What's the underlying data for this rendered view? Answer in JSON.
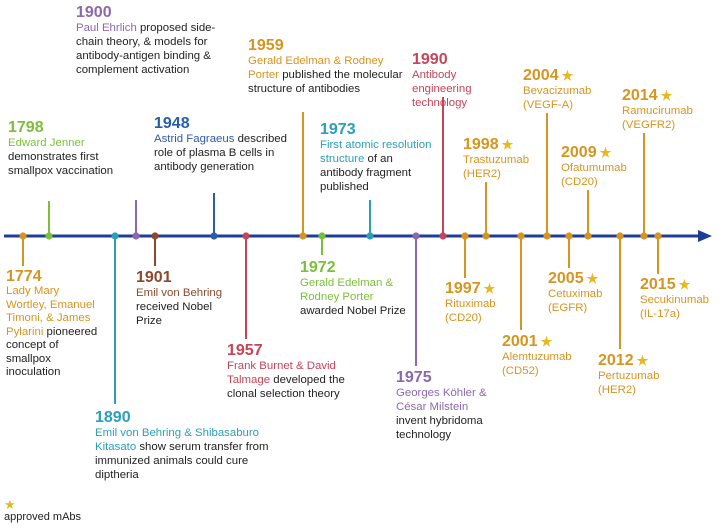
{
  "colors": {
    "axis": "#1f3c96",
    "green": "#7cbf3a",
    "orange": "#d6951f",
    "purple": "#8d68ad",
    "blue": "#2a5da8",
    "teal": "#2aa0b8",
    "brown": "#8a4a2c",
    "red": "#c44558",
    "star": "#e8b820"
  },
  "events": [
    {
      "id": "e1774",
      "year": "1774",
      "who": "Lady Mary Wortley, Emanuel Timoni, & James Pylarini",
      "rest": "pioneered concept of smallpox inoculation",
      "color": "orange",
      "approved": false
    },
    {
      "id": "e1798",
      "year": "1798",
      "who": "Edward Jenner",
      "rest": "demonstrates first smallpox vaccination",
      "color": "green",
      "approved": false
    },
    {
      "id": "e1890",
      "year": "1890",
      "who": "Emil von Behring & Shibasaburo Kitasato",
      "rest": "show serum transfer from immunized animals could cure diptheria",
      "color": "teal",
      "approved": false
    },
    {
      "id": "e1900",
      "year": "1900",
      "who": "Paul Ehrlich",
      "rest": "proposed side-chain theory, & models for antibody-antigen binding & complement activation",
      "color": "purple",
      "approved": false
    },
    {
      "id": "e1901",
      "year": "1901",
      "who": "Emil von Behring",
      "rest": "received Nobel Prize",
      "color": "brown",
      "approved": false
    },
    {
      "id": "e1948",
      "year": "1948",
      "who": "Astrid Fagraeus",
      "rest": "described role of plasma B cells in antibody generation",
      "color": "blue",
      "approved": false
    },
    {
      "id": "e1957",
      "year": "1957",
      "who": "Frank Burnet & David Talmage",
      "rest": "developed the clonal selection theory",
      "color": "red",
      "approved": false
    },
    {
      "id": "e1959",
      "year": "1959",
      "who": "Gerald Edelman & Rodney Porter",
      "rest": "published the molecular structure of antibodies",
      "color": "orange",
      "approved": false
    },
    {
      "id": "e1972",
      "year": "1972",
      "who": "Gerald Edelman & Rodney Porter",
      "rest": "awarded Nobel Prize",
      "color": "green",
      "approved": false
    },
    {
      "id": "e1973",
      "year": "1973",
      "who": "First atomic resolution structure",
      "rest": "of an antibody fragment published",
      "color": "teal",
      "approved": false
    },
    {
      "id": "e1975",
      "year": "1975",
      "who": "Georges Köhler & César Milstein",
      "rest": "invent hybridoma technology",
      "color": "purple",
      "approved": false
    },
    {
      "id": "e1990",
      "year": "1990",
      "who": "Antibody engineering technology",
      "rest": "",
      "color": "red",
      "approved": false
    },
    {
      "id": "e1997",
      "year": "1997",
      "who": "Rituximab (CD20)",
      "rest": "",
      "color": "orange",
      "approved": true
    },
    {
      "id": "e1998",
      "year": "1998",
      "who": "Trastuzumab (HER2)",
      "rest": "",
      "color": "orange",
      "approved": true
    },
    {
      "id": "e2001",
      "year": "2001",
      "who": "Alemtuzumab (CD52)",
      "rest": "",
      "color": "orange",
      "approved": true
    },
    {
      "id": "e2004",
      "year": "2004",
      "who": "Bevacizumab (VEGF-A)",
      "rest": "",
      "color": "orange",
      "approved": true
    },
    {
      "id": "e2005",
      "year": "2005",
      "who": "Cetuximab (EGFR)",
      "rest": "",
      "color": "orange",
      "approved": true
    },
    {
      "id": "e2009",
      "year": "2009",
      "who": "Ofatumumab (CD20)",
      "rest": "",
      "color": "orange",
      "approved": true
    },
    {
      "id": "e2012",
      "year": "2012",
      "who": "Pertuzumab (HER2)",
      "rest": "",
      "color": "orange",
      "approved": true
    },
    {
      "id": "e2014",
      "year": "2014",
      "who": "Ramucirumab (VEGFR2)",
      "rest": "",
      "color": "orange",
      "approved": true
    },
    {
      "id": "e2015",
      "year": "2015",
      "who": "Secukinumab (IL-17a)",
      "rest": "",
      "color": "orange",
      "approved": true
    }
  ],
  "legend": {
    "star_icon": "star-icon",
    "label": "approved mAbs"
  }
}
